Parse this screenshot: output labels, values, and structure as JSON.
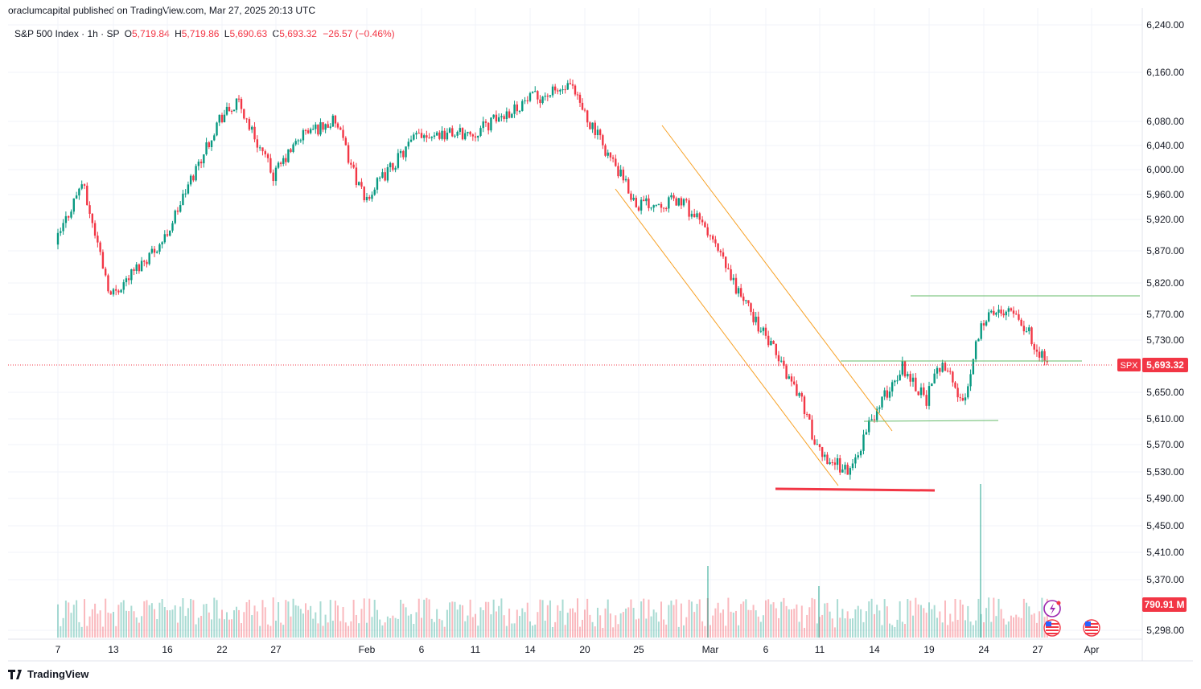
{
  "header": {
    "publisher": "oraclumcapital published on TradingView.com, Mar 27, 2025 20:13 UTC"
  },
  "legend": {
    "symbol": "S&P 500 Index · 1h · SP",
    "open_label": "O",
    "open": "5,719.84",
    "high_label": "H",
    "high": "5,719.86",
    "low_label": "L",
    "low": "5,690.63",
    "close_label": "C",
    "close": "5,693.32",
    "change": "−26.57 (−0.46%)"
  },
  "price_tag": {
    "ticker": "SPX",
    "price": "5,693.32",
    "color": "#f23645"
  },
  "volume_tag": {
    "value": "790.91 M",
    "color": "#f23645"
  },
  "brand": {
    "name": "TradingView"
  },
  "colors": {
    "up": "#089981",
    "down": "#f23645",
    "channel": "#f7a125",
    "support": "#f23645",
    "levels": "#66bb6a"
  },
  "chart_data": {
    "type": "candlestick",
    "y_axis_ticks": [
      "6,240.00",
      "6,160.00",
      "6,080.00",
      "6,040.00",
      "6,000.00",
      "5,960.00",
      "5,920.00",
      "5,870.00",
      "5,820.00",
      "5,770.00",
      "5,730.00",
      "5,650.00",
      "5,610.00",
      "5,570.00",
      "5,530.00",
      "5,490.00",
      "5,450.00",
      "5,410.00",
      "5,370.00",
      "5,298.00"
    ],
    "x_axis_ticks": [
      "7",
      "13",
      "16",
      "22",
      "27",
      "Feb",
      "6",
      "11",
      "14",
      "20",
      "25",
      "Mar",
      "6",
      "11",
      "14",
      "19",
      "24",
      "27",
      "Apr"
    ],
    "close_path": [
      {
        "t": "7",
        "close": 5880
      },
      {
        "t": "10",
        "close": 5980
      },
      {
        "t": "13",
        "close": 5800
      },
      {
        "t": "16",
        "close": 5890
      },
      {
        "t": "22",
        "close": 6085
      },
      {
        "t": "24",
        "close": 6110
      },
      {
        "t": "27",
        "close": 5990
      },
      {
        "t": "29",
        "close": 6060
      },
      {
        "t": "31",
        "close": 6080
      },
      {
        "t": "Feb",
        "close": 5950
      },
      {
        "t": "6",
        "close": 6060
      },
      {
        "t": "11",
        "close": 6060
      },
      {
        "t": "14",
        "close": 6115
      },
      {
        "t": "19",
        "close": 6135
      },
      {
        "t": "20",
        "close": 6100
      },
      {
        "t": "25",
        "close": 5945
      },
      {
        "t": "28",
        "close": 5950
      },
      {
        "t": "Mar",
        "close": 5900
      },
      {
        "t": "4",
        "close": 5820
      },
      {
        "t": "6",
        "close": 5740
      },
      {
        "t": "10",
        "close": 5640
      },
      {
        "t": "11",
        "close": 5560
      },
      {
        "t": "13",
        "close": 5530
      },
      {
        "t": "14",
        "close": 5610
      },
      {
        "t": "17",
        "close": 5690
      },
      {
        "t": "19",
        "close": 5640
      },
      {
        "t": "20",
        "close": 5700
      },
      {
        "t": "21",
        "close": 5630
      },
      {
        "t": "24",
        "close": 5760
      },
      {
        "t": "26",
        "close": 5785
      },
      {
        "t": "27",
        "close": 5693
      }
    ]
  }
}
